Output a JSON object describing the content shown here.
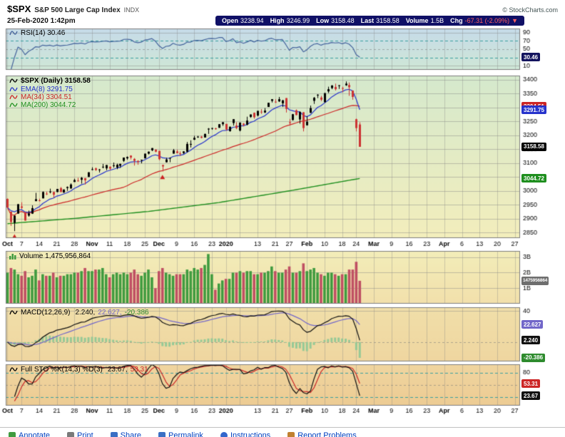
{
  "header": {
    "symbol": "$SPX",
    "name": "S&P 500 Large Cap Index",
    "exchange": "INDX",
    "copyright": "© StockCharts.com",
    "datetime": "25-Feb-2020 1:42pm",
    "quote": {
      "open_label": "Open",
      "open": "3238.94",
      "high_label": "High",
      "high": "3246.99",
      "low_label": "Low",
      "low": "3158.48",
      "last_label": "Last",
      "last": "3158.58",
      "volume_label": "Volume",
      "volume": "1.5B",
      "chg_label": "Chg",
      "chg": "-67.31 (-2.09%)",
      "chg_arrow": "▼"
    }
  },
  "colors": {
    "quote_bar_bg": "#101066",
    "chg_red": "#ff6060",
    "up": "#000000",
    "down": "#cc3333",
    "vol_up": "#3f9b3f",
    "vol_down": "#bf4f63",
    "ema8": "#2633cc",
    "ma34": "#cc2626",
    "ma200": "#1f8f1f",
    "rsi": "#44639c",
    "macd_line": "#101010",
    "macd_signal": "#7166c9",
    "macd_hist": "#96c996",
    "green_label": "#2e8b2e",
    "sto_k": "#101010",
    "sto_d": "#cc2626",
    "teal": "#3aa0a0",
    "link": "#0040c0",
    "bg_rsi_top": "#c6dbe9",
    "bg_rsi_bot": "#cfe7d6",
    "bg_price_top": "#d5e9cd",
    "bg_price_bot": "#f3eebc",
    "bg_vol_top": "#f3edb9",
    "bg_vol_bot": "#f2e0ab",
    "bg_macd_top": "#f1dfa9",
    "bg_macd_bot": "#efd6a0",
    "bg_sto_top": "#f0d5a0",
    "bg_sto_bot": "#edcc93"
  },
  "chart_data": {
    "type": "candlestick",
    "title": "$SPX (Daily) 3158.58",
    "x_domain_slots": 146,
    "indicators": {
      "rsi_period": 14,
      "ema": 8,
      "ma": 34,
      "ma_long": 200,
      "macd": [
        12,
        26,
        9
      ],
      "full_sto": [
        14,
        3,
        3
      ]
    },
    "x_ticks": [
      {
        "i": 0,
        "label": "Oct",
        "bold": true
      },
      {
        "i": 4,
        "label": "7"
      },
      {
        "i": 9,
        "label": "14"
      },
      {
        "i": 14,
        "label": "21"
      },
      {
        "i": 19,
        "label": "28"
      },
      {
        "i": 24,
        "label": "Nov",
        "bold": true
      },
      {
        "i": 29,
        "label": "11"
      },
      {
        "i": 34,
        "label": "18"
      },
      {
        "i": 39,
        "label": "25"
      },
      {
        "i": 43,
        "label": "Dec",
        "bold": true
      },
      {
        "i": 48,
        "label": "9"
      },
      {
        "i": 53,
        "label": "16"
      },
      {
        "i": 58,
        "label": "23"
      },
      {
        "i": 62,
        "label": "2020",
        "bold": true
      },
      {
        "i": 66,
        "label": ""
      },
      {
        "i": 71,
        "label": "13"
      },
      {
        "i": 76,
        "label": "21"
      },
      {
        "i": 80,
        "label": "27"
      },
      {
        "i": 85,
        "label": "Feb",
        "bold": true
      },
      {
        "i": 90,
        "label": "10"
      },
      {
        "i": 95,
        "label": "18"
      },
      {
        "i": 99,
        "label": "24"
      },
      {
        "i": 104,
        "label": "Mar",
        "bold": true
      },
      {
        "i": 109,
        "label": "9"
      },
      {
        "i": 114,
        "label": "16"
      },
      {
        "i": 119,
        "label": "23"
      },
      {
        "i": 124,
        "label": "Apr",
        "bold": true
      },
      {
        "i": 129,
        "label": "6"
      },
      {
        "i": 134,
        "label": "13"
      },
      {
        "i": 139,
        "label": "20"
      },
      {
        "i": 144,
        "label": "27"
      }
    ],
    "dates": [
      "10/1",
      "10/2",
      "10/3",
      "10/4",
      "10/7",
      "10/8",
      "10/9",
      "10/10",
      "10/11",
      "10/14",
      "10/15",
      "10/16",
      "10/17",
      "10/18",
      "10/21",
      "10/22",
      "10/23",
      "10/24",
      "10/25",
      "10/28",
      "10/29",
      "10/30",
      "10/31",
      "11/1",
      "11/4",
      "11/5",
      "11/6",
      "11/7",
      "11/8",
      "11/11",
      "11/12",
      "11/13",
      "11/14",
      "11/15",
      "11/18",
      "11/19",
      "11/20",
      "11/21",
      "11/22",
      "11/25",
      "11/26",
      "11/27",
      "11/29",
      "12/2",
      "12/3",
      "12/4",
      "12/5",
      "12/6",
      "12/9",
      "12/10",
      "12/11",
      "12/12",
      "12/13",
      "12/16",
      "12/17",
      "12/18",
      "12/19",
      "12/20",
      "12/23",
      "12/24",
      "12/26",
      "12/27",
      "12/30",
      "12/31",
      "1/2",
      "1/3",
      "1/6",
      "1/7",
      "1/8",
      "1/9",
      "1/10",
      "1/13",
      "1/14",
      "1/15",
      "1/16",
      "1/17",
      "1/21",
      "1/22",
      "1/23",
      "1/24",
      "1/27",
      "1/28",
      "1/29",
      "1/30",
      "1/31",
      "2/3",
      "2/4",
      "2/5",
      "2/6",
      "2/7",
      "2/10",
      "2/11",
      "2/12",
      "2/13",
      "2/14",
      "2/18",
      "2/19",
      "2/20",
      "2/21",
      "2/24",
      "2/25"
    ],
    "ohlc": [
      [
        2971,
        2973,
        2939,
        2940
      ],
      [
        2925,
        2925,
        2874,
        2888
      ],
      [
        2885,
        2911,
        2855,
        2911
      ],
      [
        2918,
        2953,
        2918,
        2952
      ],
      [
        2944,
        2959,
        2935,
        2939
      ],
      [
        2920,
        2925,
        2893,
        2893
      ],
      [
        2911,
        2929,
        2907,
        2919
      ],
      [
        2918,
        2948,
        2917,
        2938
      ],
      [
        2963,
        2993,
        2963,
        2970
      ],
      [
        2965,
        2972,
        2962,
        2966
      ],
      [
        2973,
        2998,
        2973,
        2996
      ],
      [
        2989,
        2997,
        2985,
        2990
      ],
      [
        2995,
        3008,
        2991,
        2998
      ],
      [
        2996,
        2997,
        2976,
        2986
      ],
      [
        2996,
        3007,
        2995,
        3007
      ],
      [
        3010,
        3014,
        2995,
        2996
      ],
      [
        2994,
        3005,
        2993,
        3005
      ],
      [
        3014,
        3016,
        3000,
        3010
      ],
      [
        3009,
        3027,
        3007,
        3023
      ],
      [
        3032,
        3044,
        3032,
        3039
      ],
      [
        3035,
        3047,
        3034,
        3037
      ],
      [
        3040,
        3050,
        3026,
        3047
      ],
      [
        3046,
        3046,
        3023,
        3038
      ],
      [
        3050,
        3067,
        3050,
        3067
      ],
      [
        3078,
        3085,
        3074,
        3078
      ],
      [
        3081,
        3084,
        3072,
        3075
      ],
      [
        3075,
        3079,
        3066,
        3077
      ],
      [
        3087,
        3097,
        3081,
        3085
      ],
      [
        3081,
        3093,
        3074,
        3093
      ],
      [
        3080,
        3088,
        3075,
        3087
      ],
      [
        3090,
        3102,
        3084,
        3092
      ],
      [
        3084,
        3098,
        3078,
        3094
      ],
      [
        3090,
        3098,
        3083,
        3097
      ],
      [
        3108,
        3120,
        3104,
        3120
      ],
      [
        3117,
        3124,
        3112,
        3122
      ],
      [
        3127,
        3128,
        3113,
        3120
      ],
      [
        3115,
        3118,
        3091,
        3108
      ],
      [
        3108,
        3110,
        3094,
        3104
      ],
      [
        3112,
        3112,
        3099,
        3110
      ],
      [
        3117,
        3134,
        3117,
        3134
      ],
      [
        3134,
        3142,
        3131,
        3141
      ],
      [
        3146,
        3154,
        3143,
        3154
      ],
      [
        3148,
        3150,
        3139,
        3141
      ],
      [
        3144,
        3144,
        3110,
        3114
      ],
      [
        3088,
        3094,
        3070,
        3093
      ],
      [
        3103,
        3119,
        3102,
        3113
      ],
      [
        3119,
        3119,
        3103,
        3117
      ],
      [
        3134,
        3151,
        3134,
        3146
      ],
      [
        3142,
        3148,
        3135,
        3136
      ],
      [
        3135,
        3142,
        3126,
        3133
      ],
      [
        3136,
        3143,
        3133,
        3142
      ],
      [
        3141,
        3176,
        3138,
        3169
      ],
      [
        3166,
        3182,
        3156,
        3169
      ],
      [
        3184,
        3198,
        3183,
        3191
      ],
      [
        3195,
        3198,
        3191,
        3193
      ],
      [
        3195,
        3198,
        3189,
        3191
      ],
      [
        3192,
        3206,
        3192,
        3205
      ],
      [
        3224,
        3226,
        3205,
        3221
      ],
      [
        3226,
        3227,
        3220,
        3224
      ],
      [
        3225,
        3227,
        3220,
        3223
      ],
      [
        3227,
        3240,
        3227,
        3240
      ],
      [
        3247,
        3248,
        3234,
        3240
      ],
      [
        3241,
        3241,
        3217,
        3221
      ],
      [
        3215,
        3231,
        3213,
        3231
      ],
      [
        3244,
        3258,
        3235,
        3258
      ],
      [
        3226,
        3247,
        3222,
        3235
      ],
      [
        3217,
        3246,
        3214,
        3246
      ],
      [
        3242,
        3244,
        3232,
        3237
      ],
      [
        3238,
        3267,
        3236,
        3253
      ],
      [
        3266,
        3275,
        3263,
        3275
      ],
      [
        3281,
        3282,
        3260,
        3265
      ],
      [
        3271,
        3288,
        3268,
        3288
      ],
      [
        3285,
        3294,
        3277,
        3283
      ],
      [
        3282,
        3298,
        3280,
        3289
      ],
      [
        3302,
        3317,
        3302,
        3317
      ],
      [
        3324,
        3330,
        3318,
        3330
      ],
      [
        3321,
        3330,
        3316,
        3321
      ],
      [
        3330,
        3338,
        3320,
        3322
      ],
      [
        3315,
        3327,
        3302,
        3326
      ],
      [
        3334,
        3334,
        3282,
        3295
      ],
      [
        3247,
        3259,
        3235,
        3244
      ],
      [
        3255,
        3277,
        3253,
        3276
      ],
      [
        3290,
        3293,
        3272,
        3273
      ],
      [
        3257,
        3286,
        3242,
        3284
      ],
      [
        3283,
        3283,
        3214,
        3226
      ],
      [
        3236,
        3269,
        3235,
        3249
      ],
      [
        3281,
        3307,
        3280,
        3298
      ],
      [
        3324,
        3338,
        3313,
        3335
      ],
      [
        3345,
        3348,
        3334,
        3346
      ],
      [
        3336,
        3342,
        3323,
        3328
      ],
      [
        3319,
        3352,
        3318,
        3352
      ],
      [
        3366,
        3375,
        3352,
        3358
      ],
      [
        3370,
        3381,
        3366,
        3379
      ],
      [
        3366,
        3386,
        3361,
        3374
      ],
      [
        3378,
        3381,
        3367,
        3380
      ],
      [
        3369,
        3375,
        3355,
        3370
      ],
      [
        3380,
        3394,
        3378,
        3386
      ],
      [
        3381,
        3390,
        3342,
        3373
      ],
      [
        3361,
        3361,
        3328,
        3338
      ],
      [
        3258,
        3260,
        3214,
        3226
      ],
      [
        3238.94,
        3246.99,
        3158.48,
        3158.58
      ]
    ],
    "volume_b": [
      2.0,
      2.3,
      2.2,
      1.9,
      1.8,
      2.1,
      1.7,
      1.8,
      2.2,
      1.5,
      1.9,
      1.8,
      1.8,
      2.0,
      1.7,
      1.8,
      1.8,
      1.9,
      1.9,
      2.0,
      2.0,
      2.1,
      2.3,
      2.1,
      2.1,
      2.2,
      2.2,
      2.3,
      1.9,
      1.7,
      1.9,
      2.0,
      1.9,
      2.0,
      1.9,
      2.0,
      2.2,
      1.9,
      1.8,
      2.0,
      2.2,
      1.7,
      1.0,
      2.1,
      2.3,
      2.0,
      1.9,
      1.8,
      1.9,
      1.9,
      1.9,
      2.2,
      2.1,
      2.3,
      2.2,
      2.3,
      2.5,
      3.2,
      1.9,
      0.9,
      1.3,
      1.5,
      1.6,
      1.6,
      2.0,
      2.0,
      2.1,
      2.0,
      2.1,
      2.1,
      1.9,
      1.9,
      2.0,
      2.0,
      2.1,
      2.4,
      2.1,
      2.0,
      2.0,
      2.2,
      2.4,
      2.0,
      2.0,
      2.1,
      2.6,
      2.1,
      2.2,
      2.3,
      2.0,
      1.9,
      1.8,
      2.0,
      2.0,
      1.9,
      1.8,
      1.9,
      1.9,
      2.2,
      2.2,
      2.7,
      1.476
    ],
    "panels": {
      "rsi": {
        "label": "RSI(14) 30.46",
        "value": 30.46,
        "range": [
          0,
          100
        ],
        "axis": [
          90,
          70,
          50,
          30,
          10
        ],
        "lines": [
          {
            "v": 90,
            "s": "grid"
          },
          {
            "v": 70,
            "s": "teal"
          },
          {
            "v": 50,
            "s": "griddash"
          },
          {
            "v": 30,
            "s": "teal"
          },
          {
            "v": 10,
            "s": "grid"
          }
        ]
      },
      "price": {
        "title": "$SPX (Daily) 3158.58",
        "range": [
          2830,
          3415
        ],
        "legend": [
          {
            "text": "EMA(8) 3291.75"
          },
          {
            "text": "MA(34) 3304.51"
          },
          {
            "text": "MA(200) 3044.72"
          }
        ],
        "axis": [
          3400,
          3350,
          3300,
          3250,
          3200,
          3150,
          3100,
          3050,
          3000,
          2950,
          2900,
          2850
        ],
        "ma200_anchors": [
          [
            0,
            2882
          ],
          [
            20,
            2902
          ],
          [
            40,
            2926
          ],
          [
            60,
            2958
          ],
          [
            80,
            3000
          ],
          [
            100,
            3044.7
          ]
        ]
      },
      "volume": {
        "label": "Volume 1,475,956,864",
        "range": [
          0,
          3.4
        ],
        "axis": [
          {
            "v": 3,
            "t": "3B"
          },
          {
            "v": 2,
            "t": "2B"
          },
          {
            "v": 1,
            "t": "1B"
          }
        ]
      },
      "macd": {
        "name": "MACD(12,26,9)",
        "v_macd": "2.240,",
        "v_signal": "22.627,",
        "v_hist": "-20.386",
        "range": [
          -25,
          45
        ],
        "axis": [
          {
            "v": 40,
            "t": "40"
          },
          {
            "v": 20,
            "t": "20"
          },
          {
            "v": 0,
            "t": "0"
          },
          {
            "v": -20,
            "t": "-20"
          }
        ],
        "lines": [
          {
            "v": 40,
            "s": "grid"
          },
          {
            "v": 0,
            "s": "griddash"
          }
        ]
      },
      "sto": {
        "name": "Full STO %K(14,3) %D(3)",
        "v_k": "23.67,",
        "v_d": "53.31",
        "range": [
          0,
          100
        ],
        "axis": [
          80,
          50,
          20
        ],
        "lines": [
          {
            "v": 80,
            "s": "teal"
          },
          {
            "v": 50,
            "s": "griddash"
          },
          {
            "v": 20,
            "s": "teal"
          }
        ]
      }
    },
    "badges": [
      {
        "panel": "rsi",
        "value": 30.46,
        "text": "30.46",
        "color": "#14145e"
      },
      {
        "panel": "price",
        "value": 3304.51,
        "text": "3304.51",
        "color": "#cc2626"
      },
      {
        "panel": "price",
        "value": 3291.75,
        "text": "3291.75",
        "color": "#2633cc"
      },
      {
        "panel": "price",
        "value": 3158.58,
        "text": "3158.58",
        "color": "#000000"
      },
      {
        "panel": "price",
        "value": 3044.72,
        "text": "3044.72",
        "color": "#1f8f1f"
      },
      {
        "panel": "vol",
        "value": 1.476,
        "text": "1475956864",
        "color": "#6e6e6e",
        "small": true
      },
      {
        "panel": "macd",
        "value": 22.627,
        "text": "22.627",
        "color": "#7166c9"
      },
      {
        "panel": "macd",
        "value": 2.24,
        "text": "2.240",
        "color": "#111111"
      },
      {
        "panel": "macd",
        "value": -20.386,
        "text": "-20.386",
        "color": "#2e8b2e"
      },
      {
        "panel": "sto",
        "value": 53.31,
        "text": "53.31",
        "color": "#cc2626"
      },
      {
        "panel": "sto",
        "value": 23.67,
        "text": "23.67",
        "color": "#111111"
      }
    ],
    "annotations": {
      "arrows": [
        {
          "i": 2,
          "price": 2849,
          "dir": "up",
          "color": "#cc2222"
        },
        {
          "i": 44,
          "price": 3063,
          "dir": "up",
          "color": "#cc2222"
        }
      ]
    }
  },
  "toolbar": {
    "items": [
      {
        "label": "Annotate"
      },
      {
        "label": "Print"
      },
      {
        "label": "Share"
      },
      {
        "label": "Permalink"
      },
      {
        "label": "Instructions"
      },
      {
        "label": "Report Problems"
      }
    ]
  }
}
